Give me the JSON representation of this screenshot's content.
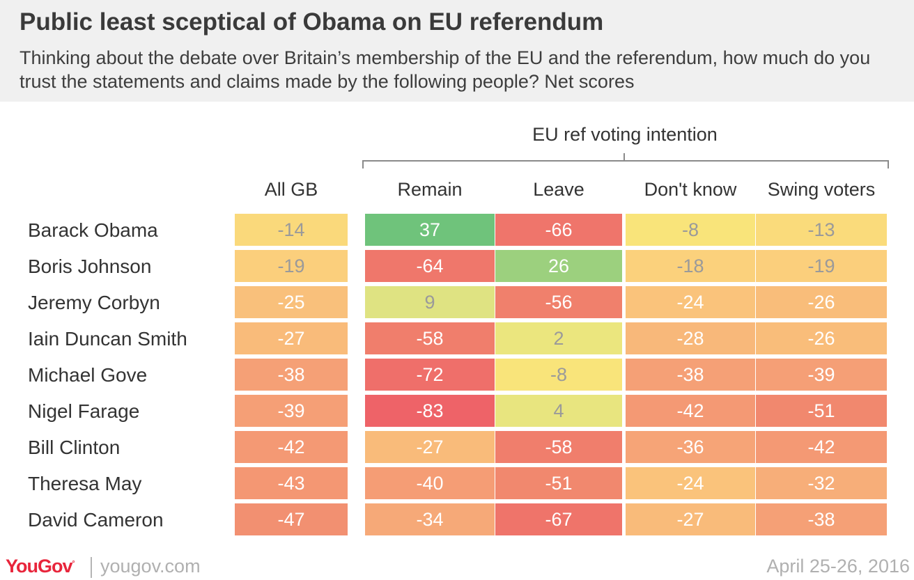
{
  "title": "Public least sceptical of Obama on EU referendum",
  "subtitle": "Thinking about the debate over Britain’s membership of the EU and the referendum, how much do you trust the statements and claims made by the following people? Net scores",
  "group_label": "EU ref voting intention",
  "footer": {
    "brand": "YouGov",
    "url": "yougov.com",
    "date": "April 25-26, 2016"
  },
  "chart_data": {
    "type": "heatmap",
    "columns": [
      "All GB",
      "Remain",
      "Leave",
      "Don't know",
      "Swing voters"
    ],
    "rows": [
      "Barack Obama",
      "Boris Johnson",
      "Jeremy Corbyn",
      "Iain Duncan Smith",
      "Michael Gove",
      "Nigel Farage",
      "Bill Clinton",
      "Theresa May",
      "David Cameron"
    ],
    "values": [
      [
        -14,
        37,
        -66,
        -8,
        -13
      ],
      [
        -19,
        -64,
        26,
        -18,
        -19
      ],
      [
        -25,
        9,
        -56,
        -24,
        -26
      ],
      [
        -27,
        -58,
        2,
        -28,
        -26
      ],
      [
        -38,
        -72,
        -8,
        -38,
        -39
      ],
      [
        -39,
        -83,
        4,
        -42,
        -51
      ],
      [
        -42,
        -27,
        -58,
        -36,
        -42
      ],
      [
        -43,
        -40,
        -51,
        -24,
        -32
      ],
      [
        -47,
        -34,
        -67,
        -27,
        -38
      ]
    ],
    "colors": {
      "high_positive": "#63c07a",
      "mild_positive": "#dde283",
      "neutral_yellow": "#f8ea7a",
      "orange": "#f9bf7a",
      "red": "#ee6c6c"
    }
  }
}
